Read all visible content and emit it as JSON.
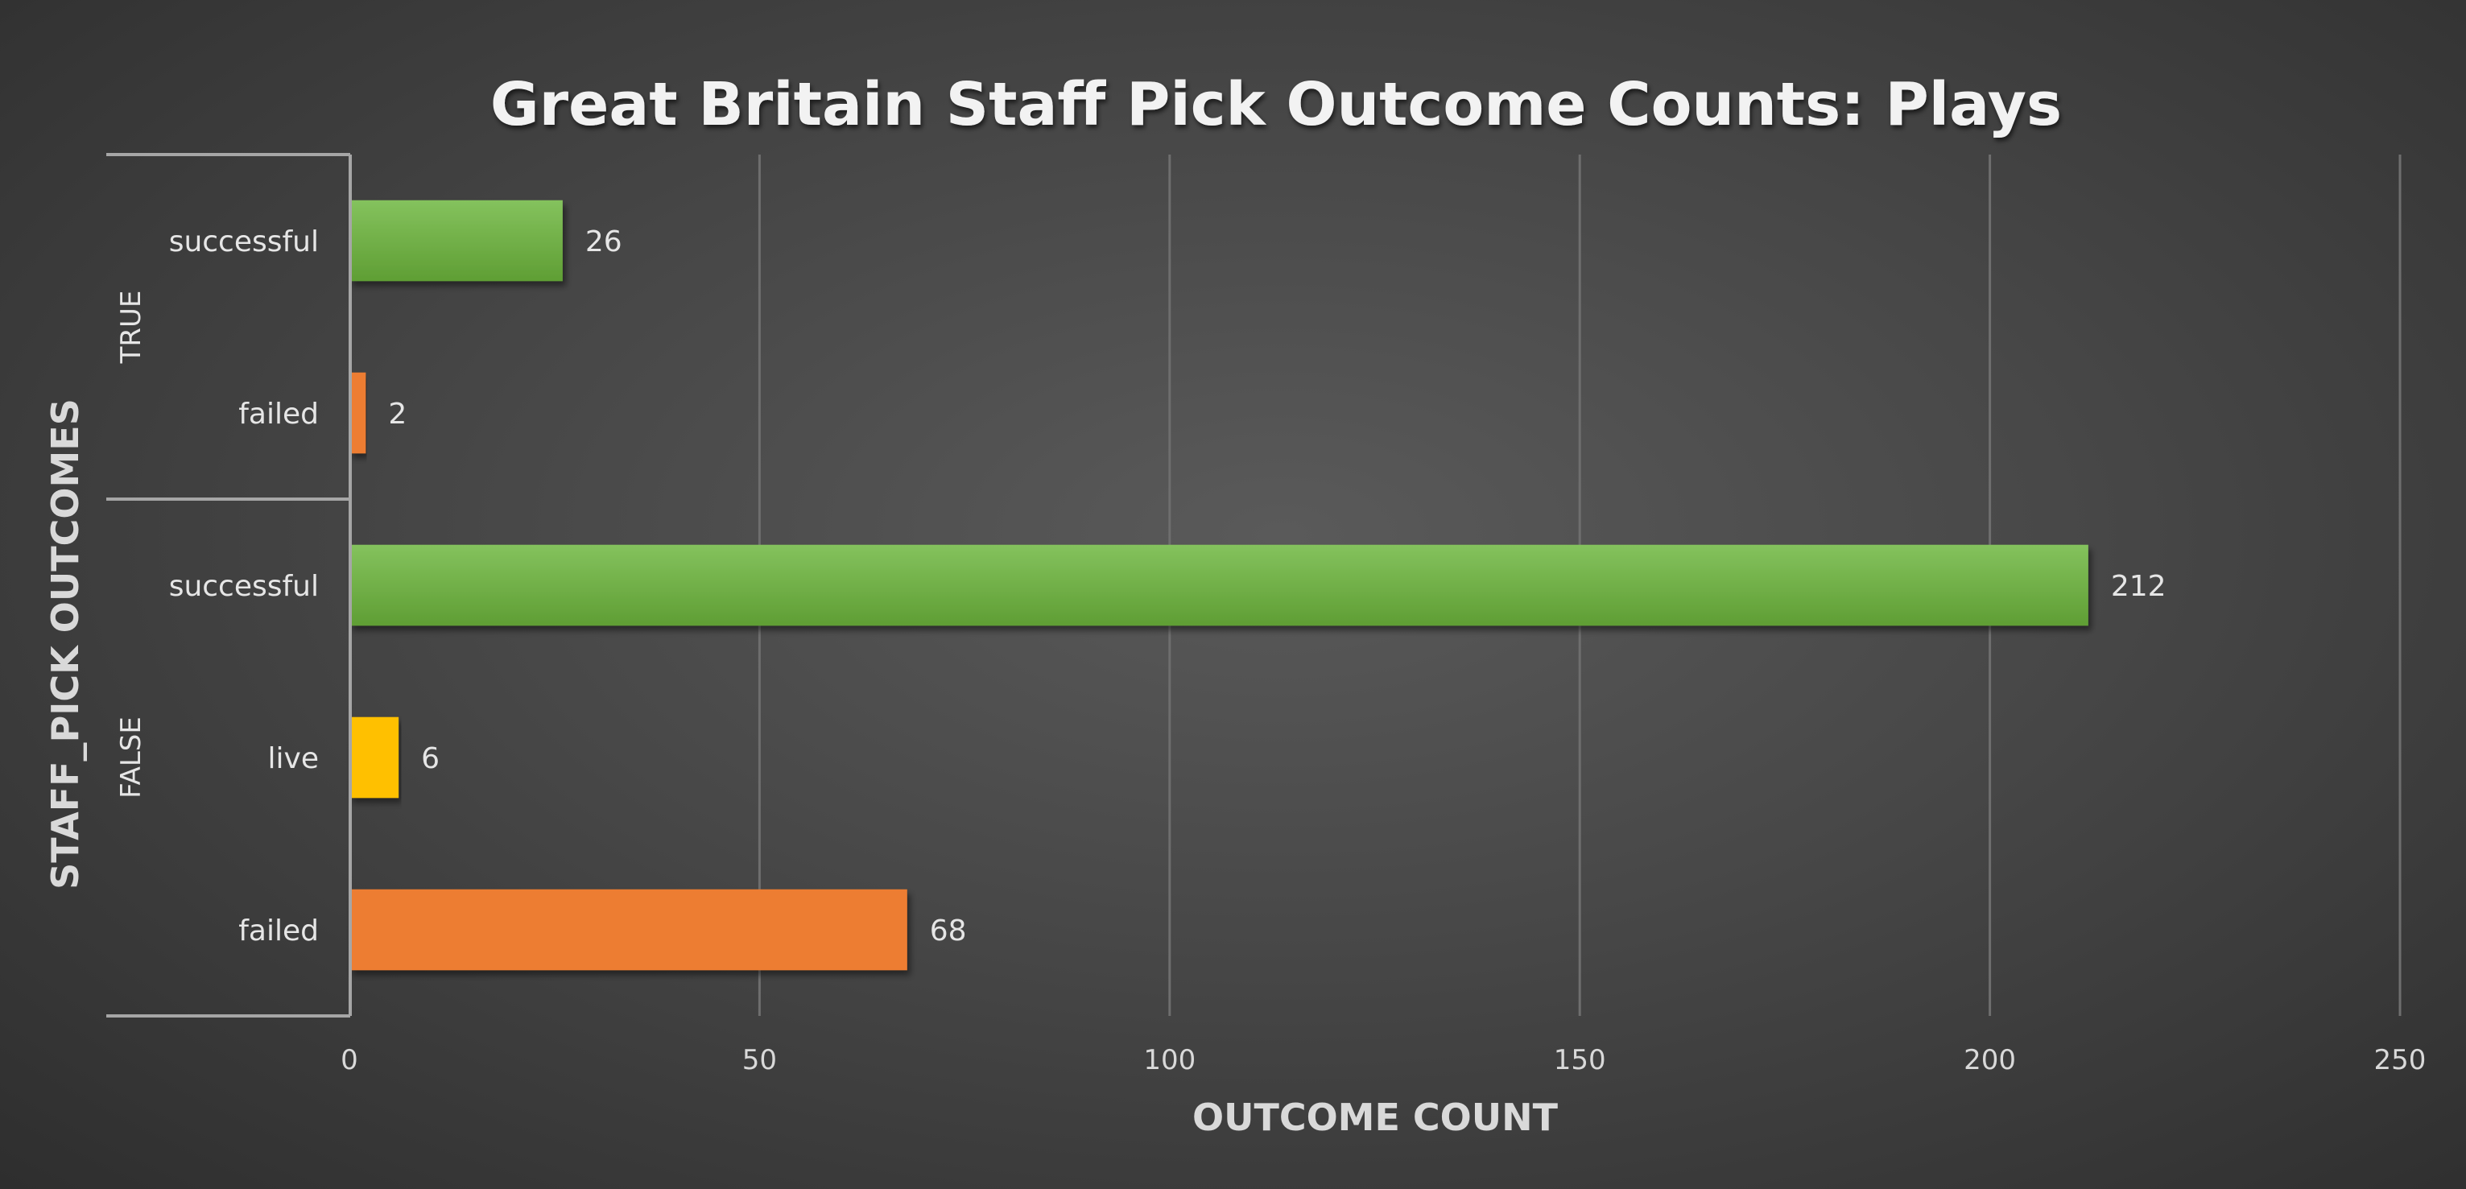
{
  "chart_data": {
    "type": "bar",
    "orientation": "horizontal",
    "title": "Great Britain Staff Pick Outcome Counts: Plays",
    "xlabel": "OUTCOME COUNT",
    "ylabel": "STAFF_PICK OUTCOMES",
    "xlim": [
      0,
      250
    ],
    "xticks": [
      0,
      50,
      100,
      150,
      200,
      250
    ],
    "grid": true,
    "groups": [
      {
        "name": "TRUE",
        "bars": [
          {
            "category": "successful",
            "value": 26,
            "color": "#70ad47"
          },
          {
            "category": "failed",
            "value": 2,
            "color": "#ed7d31"
          }
        ]
      },
      {
        "name": "FALSE",
        "bars": [
          {
            "category": "successful",
            "value": 212,
            "color": "#70ad47"
          },
          {
            "category": "live",
            "value": 6,
            "color": "#ffc000"
          },
          {
            "category": "failed",
            "value": 68,
            "color": "#ed7d31"
          }
        ]
      }
    ]
  }
}
